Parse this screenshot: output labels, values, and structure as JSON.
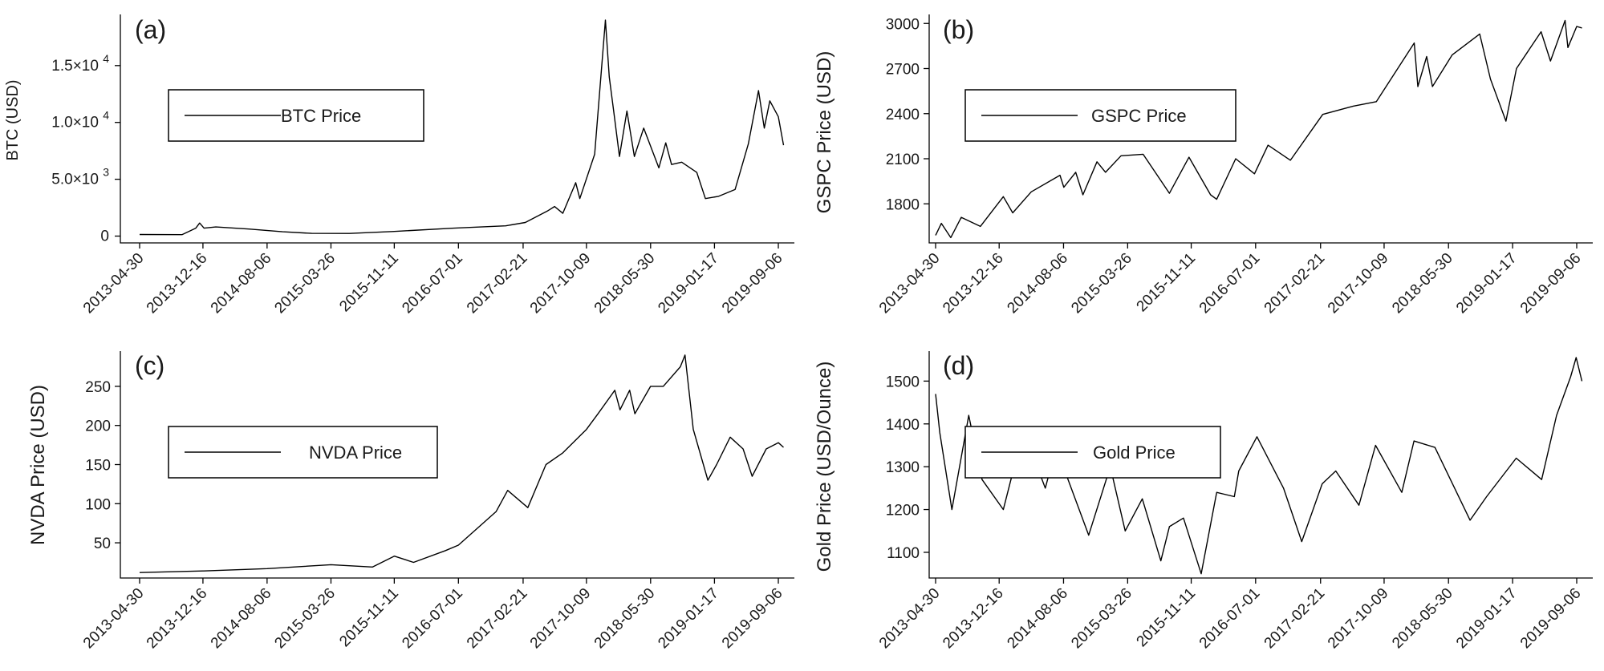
{
  "x_ticks": [
    "2013-04-30",
    "2013-12-16",
    "2014-08-06",
    "2015-03-26",
    "2015-11-11",
    "2016-07-01",
    "2017-02-21",
    "2017-10-09",
    "2018-05-30",
    "2019-01-17",
    "2019-09-06"
  ],
  "chart_data": [
    {
      "type": "line",
      "panel_label": "(a)",
      "ylabel": "BTC (USD)",
      "legend": "BTC Price",
      "legend_position": "upper-left",
      "y_scale": "linear",
      "ylim": [
        -600,
        19500
      ],
      "y_ticks": [
        {
          "value": 0,
          "mant": "0",
          "exp": ""
        },
        {
          "value": 5000,
          "mant": "5.0×10",
          "exp": "3"
        },
        {
          "value": 10000,
          "mant": "1.0×10",
          "exp": "4"
        },
        {
          "value": 15000,
          "mant": "1.5×10",
          "exp": "4"
        }
      ],
      "series": [
        {
          "name": "BTC Price",
          "x": [
            "2013-04-30",
            "2013-10-01",
            "2013-11-20",
            "2013-12-04",
            "2013-12-20",
            "2014-02-01",
            "2014-06-01",
            "2014-10-01",
            "2015-01-15",
            "2015-06-01",
            "2015-11-04",
            "2016-06-15",
            "2016-12-20",
            "2017-03-01",
            "2017-05-20",
            "2017-06-15",
            "2017-07-15",
            "2017-08-31",
            "2017-09-15",
            "2017-11-08",
            "2017-12-17",
            "2017-12-31",
            "2018-01-16",
            "2018-02-06",
            "2018-03-05",
            "2018-04-01",
            "2018-05-05",
            "2018-06-29",
            "2018-07-24",
            "2018-08-14",
            "2018-09-20",
            "2018-11-14",
            "2018-12-15",
            "2019-02-01",
            "2019-04-02",
            "2019-05-20",
            "2019-06-26",
            "2019-07-17",
            "2019-08-06",
            "2019-09-06",
            "2019-09-25"
          ],
          "values": [
            140,
            125,
            700,
            1150,
            700,
            800,
            620,
            380,
            240,
            230,
            400,
            700,
            900,
            1200,
            2200,
            2600,
            2000,
            4700,
            3300,
            7200,
            19000,
            14000,
            11000,
            7000,
            11000,
            7000,
            9500,
            6000,
            8200,
            6300,
            6500,
            5600,
            3300,
            3500,
            4100,
            8100,
            12800,
            9500,
            11900,
            10500,
            8000
          ]
        }
      ]
    },
    {
      "type": "line",
      "panel_label": "(b)",
      "ylabel": "GSPC Price (USD)",
      "legend": "GSPC Price",
      "legend_position": "upper-left",
      "y_scale": "linear",
      "ylim": [
        1540,
        3060
      ],
      "y_ticks": [
        {
          "value": 1800,
          "label": "1800"
        },
        {
          "value": 2100,
          "label": "2100"
        },
        {
          "value": 2400,
          "label": "2400"
        },
        {
          "value": 2700,
          "label": "2700"
        },
        {
          "value": 3000,
          "label": "3000"
        }
      ],
      "series": [
        {
          "name": "GSPC Price",
          "x": [
            "2013-04-30",
            "2013-05-21",
            "2013-06-24",
            "2013-08-01",
            "2013-10-09",
            "2013-12-31",
            "2014-02-03",
            "2014-04-11",
            "2014-07-24",
            "2014-08-07",
            "2014-09-19",
            "2014-10-15",
            "2014-12-05",
            "2015-01-05",
            "2015-03-02",
            "2015-05-21",
            "2015-08-24",
            "2015-11-03",
            "2016-01-20",
            "2016-02-11",
            "2016-04-20",
            "2016-06-27",
            "2016-08-15",
            "2016-11-04",
            "2017-03-01",
            "2017-06-19",
            "2017-09-11",
            "2018-01-26",
            "2018-02-08",
            "2018-03-12",
            "2018-04-02",
            "2018-06-12",
            "2018-09-20",
            "2018-10-29",
            "2018-12-24",
            "2019-01-31",
            "2019-04-30",
            "2019-06-03",
            "2019-07-26",
            "2019-08-05",
            "2019-09-06",
            "2019-09-25"
          ],
          "values": [
            1590,
            1670,
            1575,
            1710,
            1650,
            1848,
            1740,
            1880,
            1990,
            1910,
            2010,
            1860,
            2080,
            2010,
            2120,
            2130,
            1870,
            2110,
            1860,
            1830,
            2100,
            2000,
            2190,
            2090,
            2395,
            2450,
            2480,
            2870,
            2580,
            2780,
            2580,
            2790,
            2930,
            2630,
            2350,
            2700,
            2945,
            2750,
            3020,
            2840,
            2980,
            2970
          ]
        }
      ]
    },
    {
      "type": "line",
      "panel_label": "(c)",
      "ylabel": "NVDA Price (USD)",
      "legend": "NVDA Price",
      "legend_position": "upper-left",
      "y_scale": "linear",
      "ylim": [
        5,
        295
      ],
      "y_ticks": [
        {
          "value": 50,
          "label": "50"
        },
        {
          "value": 100,
          "label": "100"
        },
        {
          "value": 150,
          "label": "150"
        },
        {
          "value": 200,
          "label": "200"
        },
        {
          "value": 250,
          "label": "250"
        }
      ],
      "series": [
        {
          "name": "NVDA Price",
          "x": [
            "2013-04-30",
            "2013-12-16",
            "2014-08-06",
            "2015-03-26",
            "2015-08-24",
            "2015-11-11",
            "2016-01-20",
            "2016-05-15",
            "2016-07-01",
            "2016-11-15",
            "2016-12-27",
            "2017-03-10",
            "2017-05-15",
            "2017-07-15",
            "2017-10-09",
            "2017-11-20",
            "2018-01-20",
            "2018-02-08",
            "2018-03-15",
            "2018-04-03",
            "2018-05-30",
            "2018-07-15",
            "2018-09-15",
            "2018-10-02",
            "2018-11-01",
            "2018-12-24",
            "2019-01-25",
            "2019-03-15",
            "2019-05-01",
            "2019-06-03",
            "2019-07-24",
            "2019-09-06",
            "2019-09-25"
          ],
          "values": [
            12,
            14,
            17,
            22,
            19,
            33,
            25,
            40,
            47,
            90,
            117,
            95,
            150,
            165,
            195,
            215,
            245,
            220,
            245,
            215,
            250,
            250,
            275,
            290,
            195,
            130,
            150,
            185,
            170,
            135,
            170,
            178,
            172
          ]
        }
      ]
    },
    {
      "type": "line",
      "panel_label": "(d)",
      "ylabel": "Gold Price (USD/Ounce)",
      "legend": "Gold Price",
      "legend_position": "upper-left",
      "y_scale": "linear",
      "ylim": [
        1040,
        1570
      ],
      "y_ticks": [
        {
          "value": 1100,
          "label": "1100"
        },
        {
          "value": 1200,
          "label": "1200"
        },
        {
          "value": 1300,
          "label": "1300"
        },
        {
          "value": 1400,
          "label": "1400"
        },
        {
          "value": 1500,
          "label": "1500"
        }
      ],
      "series": [
        {
          "name": "Gold Price",
          "x": [
            "2013-04-30",
            "2013-05-15",
            "2013-06-28",
            "2013-08-28",
            "2013-10-15",
            "2013-12-31",
            "2014-03-14",
            "2014-06-01",
            "2014-07-10",
            "2014-11-05",
            "2015-01-22",
            "2015-03-17",
            "2015-05-18",
            "2015-07-24",
            "2015-08-24",
            "2015-10-14",
            "2015-12-17",
            "2016-02-11",
            "2016-04-15",
            "2016-05-01",
            "2016-07-06",
            "2016-10-10",
            "2016-12-15",
            "2017-02-27",
            "2017-04-17",
            "2017-07-10",
            "2017-09-08",
            "2017-12-12",
            "2018-01-25",
            "2018-04-11",
            "2018-08-16",
            "2018-10-15",
            "2019-01-30",
            "2019-05-02",
            "2019-06-25",
            "2019-08-15",
            "2019-09-04",
            "2019-09-25"
          ],
          "values": [
            1470,
            1380,
            1200,
            1420,
            1270,
            1200,
            1385,
            1250,
            1345,
            1140,
            1300,
            1150,
            1225,
            1080,
            1160,
            1180,
            1050,
            1240,
            1230,
            1290,
            1370,
            1250,
            1125,
            1260,
            1290,
            1210,
            1350,
            1240,
            1360,
            1345,
            1175,
            1230,
            1320,
            1270,
            1420,
            1510,
            1555,
            1500
          ]
        }
      ]
    }
  ]
}
